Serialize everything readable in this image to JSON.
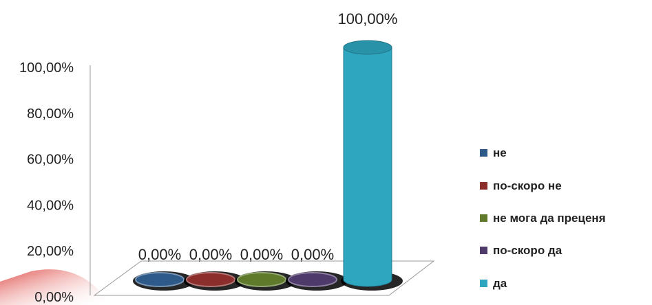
{
  "chart_data": {
    "type": "bar",
    "title": "",
    "xlabel": "",
    "ylabel": "",
    "ylim": [
      0,
      1
    ],
    "y_ticks": [
      "0,00%",
      "20,00%",
      "40,00%",
      "60,00%",
      "80,00%",
      "100,00%"
    ],
    "series": [
      {
        "name": "не",
        "value": 0,
        "label": "0,00%",
        "color": "#2E5A8A"
      },
      {
        "name": "по-скоро не",
        "value": 0,
        "label": "0,00%",
        "color": "#8B2E2C"
      },
      {
        "name": "не мога да преценя",
        "value": 0,
        "label": "0,00%",
        "color": "#5E7A2A"
      },
      {
        "name": "по-скоро да",
        "value": 0,
        "label": "0,00%",
        "color": "#4E3A6B"
      },
      {
        "name": "да",
        "value": 1,
        "label": "100,00%",
        "color": "#2EA6C0"
      }
    ],
    "legend_position": "right",
    "grid": false,
    "style": "3d-cylinder"
  }
}
